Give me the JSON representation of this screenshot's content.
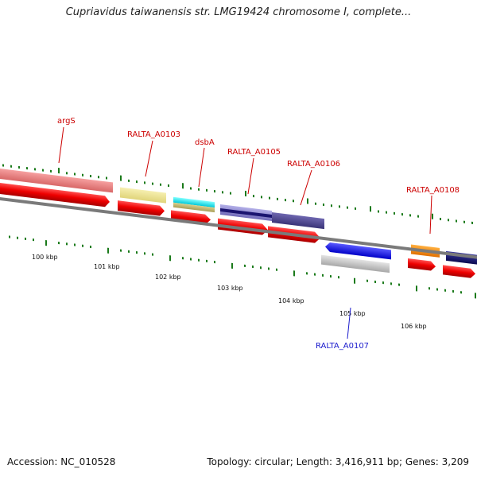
{
  "title": "Cupriavidus taiwanensis str. LMG19424 chromosome I, complete...",
  "footer": {
    "accession": "Accession: NC_010528",
    "summary": "Topology: circular; Length: 3,416,911 bp; Genes: 3,209"
  },
  "colors": {
    "cds_forward": "#ee0000",
    "label_forward": "#cc0000",
    "label_reverse": "#1a1acc",
    "tick": "#1a7a1a",
    "backbone": "#7a7a7a"
  },
  "kbp_labels": [
    "100 kbp",
    "101 kbp",
    "102 kbp",
    "103 kbp",
    "104 kbp",
    "105 kbp",
    "106 kbp"
  ],
  "gene_labels": [
    {
      "text": "argS",
      "strand": "+"
    },
    {
      "text": "RALTA_A0103",
      "strand": "+"
    },
    {
      "text": "dsbA",
      "strand": "+"
    },
    {
      "text": "RALTA_A0105",
      "strand": "+"
    },
    {
      "text": "RALTA_A0106",
      "strand": "+"
    },
    {
      "text": "RALTA_A0108",
      "strand": "+"
    },
    {
      "text": "RALTA_A0107",
      "strand": "-"
    }
  ]
}
